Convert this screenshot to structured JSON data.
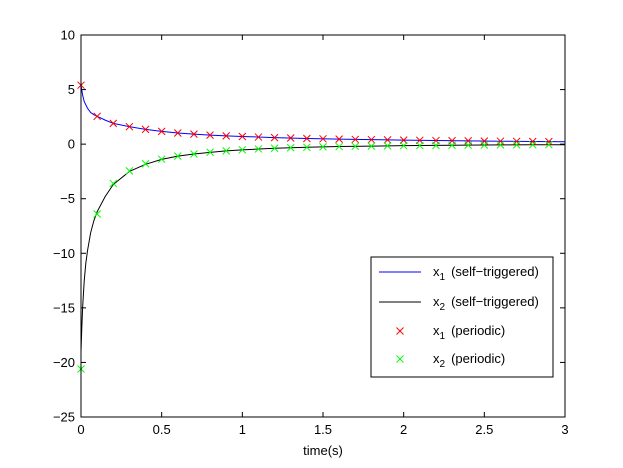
{
  "chart_data": {
    "type": "line",
    "title": "",
    "xlabel": "time(s)",
    "ylabel": "",
    "xlim": [
      0,
      3
    ],
    "ylim": [
      -25,
      10
    ],
    "xticks": [
      0,
      0.5,
      1,
      1.5,
      2,
      2.5,
      3
    ],
    "xtick_labels": [
      "0",
      "0.5",
      "1",
      "1.5",
      "2",
      "2.5",
      "3"
    ],
    "yticks": [
      -25,
      -20,
      -15,
      -10,
      -5,
      0,
      5,
      10
    ],
    "ytick_labels": [
      "−25",
      "−20",
      "−15",
      "−10",
      "−5",
      "0",
      "5",
      "10"
    ],
    "grid": false,
    "legend_position": "bottom-right",
    "series": [
      {
        "name_parts": [
          "x",
          "1",
          "(self−triggered)"
        ],
        "style": "line",
        "color": "#0000ff",
        "x": [
          0,
          0.01,
          0.02,
          0.04,
          0.06,
          0.08,
          0.1,
          0.15,
          0.2,
          0.3,
          0.4,
          0.5,
          0.6,
          0.7,
          0.8,
          0.9,
          1.0,
          1.2,
          1.4,
          1.6,
          1.8,
          2.0,
          2.2,
          2.4,
          2.6,
          2.8,
          3.0
        ],
        "y": [
          5.4,
          4.5,
          3.9,
          3.3,
          2.9,
          2.7,
          2.55,
          2.2,
          1.9,
          1.6,
          1.35,
          1.17,
          1.02,
          0.92,
          0.83,
          0.76,
          0.7,
          0.6,
          0.52,
          0.46,
          0.41,
          0.37,
          0.33,
          0.3,
          0.27,
          0.24,
          0.22
        ]
      },
      {
        "name_parts": [
          "x",
          "2",
          "(self−triggered)"
        ],
        "style": "line",
        "color": "#000000",
        "x": [
          0,
          0.005,
          0.01,
          0.02,
          0.03,
          0.04,
          0.06,
          0.08,
          0.1,
          0.15,
          0.2,
          0.3,
          0.4,
          0.5,
          0.6,
          0.7,
          0.8,
          0.9,
          1.0,
          1.2,
          1.4,
          1.6,
          1.8,
          2.0,
          2.2,
          2.4,
          2.6,
          2.8,
          3.0
        ],
        "y": [
          -19.0,
          -16.8,
          -15.0,
          -12.5,
          -10.9,
          -9.8,
          -8.1,
          -7.0,
          -6.2,
          -4.8,
          -3.7,
          -2.5,
          -1.85,
          -1.4,
          -1.1,
          -0.9,
          -0.75,
          -0.62,
          -0.52,
          -0.38,
          -0.29,
          -0.22,
          -0.18,
          -0.14,
          -0.11,
          -0.09,
          -0.07,
          -0.06,
          -0.05
        ]
      },
      {
        "name_parts": [
          "x",
          "1",
          "(periodic)"
        ],
        "style": "marker",
        "marker": "x",
        "color": "#ff0000",
        "x": [
          0,
          0.1,
          0.2,
          0.3,
          0.4,
          0.5,
          0.6,
          0.7,
          0.8,
          0.9,
          1.0,
          1.1,
          1.2,
          1.3,
          1.4,
          1.5,
          1.6,
          1.7,
          1.8,
          1.9,
          2.0,
          2.1,
          2.2,
          2.3,
          2.4,
          2.5,
          2.6,
          2.7,
          2.8,
          2.9
        ],
        "y": [
          5.4,
          2.55,
          1.9,
          1.6,
          1.35,
          1.17,
          1.02,
          0.92,
          0.83,
          0.76,
          0.7,
          0.65,
          0.6,
          0.56,
          0.52,
          0.49,
          0.46,
          0.43,
          0.41,
          0.39,
          0.37,
          0.35,
          0.33,
          0.31,
          0.3,
          0.28,
          0.27,
          0.26,
          0.24,
          0.23
        ]
      },
      {
        "name_parts": [
          "x",
          "2",
          "(periodic)"
        ],
        "style": "marker",
        "marker": "x",
        "color": "#00ff00",
        "x": [
          0,
          0.1,
          0.2,
          0.3,
          0.4,
          0.5,
          0.6,
          0.7,
          0.8,
          0.9,
          1.0,
          1.1,
          1.2,
          1.3,
          1.4,
          1.5,
          1.6,
          1.7,
          1.8,
          1.9,
          2.0,
          2.1,
          2.2,
          2.3,
          2.4,
          2.5,
          2.6,
          2.7,
          2.8,
          2.9
        ],
        "y": [
          -20.6,
          -6.4,
          -3.6,
          -2.45,
          -1.8,
          -1.38,
          -1.1,
          -0.9,
          -0.74,
          -0.62,
          -0.52,
          -0.44,
          -0.38,
          -0.33,
          -0.29,
          -0.25,
          -0.22,
          -0.2,
          -0.18,
          -0.16,
          -0.14,
          -0.13,
          -0.11,
          -0.1,
          -0.09,
          -0.08,
          -0.07,
          -0.07,
          -0.06,
          -0.05
        ]
      }
    ]
  }
}
